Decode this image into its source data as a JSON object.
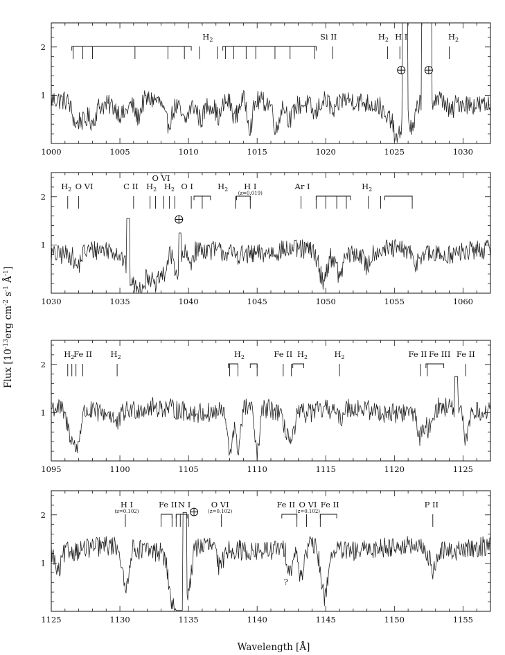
{
  "figure": {
    "xlabel": "Wavelength [Å]",
    "ylabel": "Flux [10^-13 erg cm^-2 s^-1 Å^-1]",
    "ylabel_parts": {
      "base": "Flux [10",
      "exp1": "-13",
      "mid1": "erg cm",
      "exp2": "-2",
      "mid2": " s",
      "exp3": "-1",
      "mid3": " Å",
      "exp4": "-1",
      "end": "]"
    }
  },
  "chart_data": [
    {
      "type": "line",
      "xlim": [
        1000,
        1032
      ],
      "ylim": [
        0,
        2.5
      ],
      "xticks": [
        1000,
        1005,
        1010,
        1015,
        1020,
        1025,
        1030
      ],
      "yticks": [
        1,
        2
      ],
      "continuum": 0.85,
      "absorption": [
        {
          "w": 1001.8,
          "depth": 0.45,
          "width": 0.35
        },
        {
          "w": 1002.4,
          "depth": 0.35,
          "width": 0.3
        },
        {
          "w": 1003.0,
          "depth": 0.35,
          "width": 0.3
        },
        {
          "w": 1005.2,
          "depth": 0.25,
          "width": 0.5
        },
        {
          "w": 1006.3,
          "depth": 0.35,
          "width": 0.3
        },
        {
          "w": 1008.5,
          "depth": 0.45,
          "width": 0.4
        },
        {
          "w": 1009.7,
          "depth": 0.35,
          "width": 0.35
        },
        {
          "w": 1010.9,
          "depth": 0.3,
          "width": 0.3
        },
        {
          "w": 1012.2,
          "depth": 0.3,
          "width": 0.3
        },
        {
          "w": 1013.4,
          "depth": 0.35,
          "width": 0.3
        },
        {
          "w": 1014.5,
          "depth": 0.55,
          "width": 0.25
        },
        {
          "w": 1016.4,
          "depth": 0.55,
          "width": 0.25
        },
        {
          "w": 1017.4,
          "depth": 0.3,
          "width": 0.3
        },
        {
          "w": 1019.2,
          "depth": 0.25,
          "width": 0.3
        },
        {
          "w": 1020.6,
          "depth": 0.3,
          "width": 0.3
        },
        {
          "w": 1024.4,
          "depth": 0.3,
          "width": 0.3
        },
        {
          "w": 1025.2,
          "depth": 0.75,
          "width": 0.4
        },
        {
          "w": 1026.3,
          "depth": 0.6,
          "width": 0.3
        },
        {
          "w": 1029.1,
          "depth": 0.25,
          "width": 0.3
        }
      ],
      "emission": [
        {
          "x0": 1025.6,
          "x1": 1025.95,
          "peak": 3.2
        },
        {
          "x0": 1027.0,
          "x1": 1027.7,
          "peak": 3.2
        }
      ],
      "labels": [
        {
          "text": "H",
          "sub": "2",
          "w": 1011.4,
          "row": 1
        },
        {
          "text": "Si II",
          "w": 1020.2,
          "row": 1
        },
        {
          "text": "H",
          "sub": "2",
          "w": 1024.2,
          "row": 1
        },
        {
          "text": "H I",
          "w": 1025.5,
          "row": 1
        },
        {
          "text": "H",
          "sub": "2",
          "w": 1029.3,
          "row": 1
        }
      ],
      "brackets": [
        {
          "x0": 1001.5,
          "x1": 1010.2,
          "row": 1
        },
        {
          "x0": 1012.5,
          "x1": 1019.3,
          "row": 1
        }
      ],
      "markers": [
        1001.6,
        1002.3,
        1003.0,
        1006.1,
        1008.5,
        1009.7,
        1010.8,
        1012.1,
        1012.7,
        1013.3,
        1014.2,
        1014.9,
        1016.3,
        1017.4,
        1019.2,
        1020.5,
        1024.5,
        1025.4,
        1029.0
      ],
      "earth": [
        {
          "w": 1025.5,
          "y": 1.52
        },
        {
          "w": 1027.5,
          "y": 1.52
        }
      ]
    },
    {
      "type": "line",
      "xlim": [
        1030,
        1062
      ],
      "ylim": [
        0,
        2.5
      ],
      "xticks": [
        1030,
        1035,
        1040,
        1045,
        1050,
        1055,
        1060
      ],
      "yticks": [
        1,
        2
      ],
      "continuum": 0.85,
      "absorption": [
        {
          "w": 1031.9,
          "depth": 0.3,
          "width": 0.3
        },
        {
          "w": 1036.3,
          "depth": 0.75,
          "width": 0.9
        },
        {
          "w": 1037.6,
          "depth": 0.6,
          "width": 0.35
        },
        {
          "w": 1038.2,
          "depth": 0.4,
          "width": 0.3
        },
        {
          "w": 1039.2,
          "depth": 0.45,
          "width": 0.3
        },
        {
          "w": 1040.1,
          "depth": 0.25,
          "width": 0.3
        },
        {
          "w": 1049.8,
          "depth": 0.55,
          "width": 0.4
        },
        {
          "w": 1051.0,
          "depth": 0.45,
          "width": 0.3
        },
        {
          "w": 1053.0,
          "depth": 0.3,
          "width": 0.3
        },
        {
          "w": 1056.5,
          "depth": 0.25,
          "width": 0.3
        }
      ],
      "emission": [
        {
          "x0": 1035.5,
          "x1": 1035.7,
          "peak": 1.55
        },
        {
          "x0": 1039.3,
          "x1": 1039.45,
          "peak": 1.25
        }
      ],
      "labels": [
        {
          "text": "H",
          "sub": "2",
          "w": 1031.1,
          "row": 1
        },
        {
          "text": "O VI",
          "w": 1032.4,
          "row": 1
        },
        {
          "text": "C II",
          "w": 1035.8,
          "row": 1
        },
        {
          "text": "O VI",
          "w": 1038.0,
          "row": 0
        },
        {
          "text": "H",
          "sub": "2",
          "w": 1037.3,
          "row": 1
        },
        {
          "text": "H",
          "sub": "2",
          "w": 1038.6,
          "row": 1
        },
        {
          "text": "O I",
          "w": 1039.9,
          "row": 1
        },
        {
          "text": "H",
          "sub": "2",
          "w": 1042.5,
          "row": 1
        },
        {
          "text": "H I",
          "note": "(z=0.019)",
          "w": 1044.5,
          "row": 1
        },
        {
          "text": "Ar I",
          "w": 1048.3,
          "row": 1
        },
        {
          "text": "H",
          "sub": "2",
          "w": 1053.0,
          "row": 1
        }
      ],
      "brackets": [
        {
          "x0": 1040.4,
          "x1": 1041.6,
          "row": 1
        },
        {
          "x0": 1043.5,
          "x1": 1044.5,
          "row": 1
        },
        {
          "x0": 1049.3,
          "x1": 1051.8,
          "row": 1
        },
        {
          "x0": 1054.3,
          "x1": 1056.3,
          "row": 1
        }
      ],
      "markers": [
        1031.2,
        1032.0,
        1036.0,
        1037.2,
        1037.6,
        1038.2,
        1038.6,
        1039.0,
        1040.2,
        1041.0,
        1043.4,
        1044.5,
        1048.2,
        1049.3,
        1050.0,
        1050.8,
        1051.5,
        1053.1,
        1054.0,
        1056.3
      ],
      "earth": [
        {
          "w": 1039.3,
          "y": 1.53
        }
      ]
    },
    {
      "type": "line",
      "xlim": [
        1095,
        1127
      ],
      "ylim": [
        0,
        2.5
      ],
      "xticks": [
        1095,
        1100,
        1105,
        1110,
        1115,
        1120,
        1125
      ],
      "yticks": [
        1,
        2
      ],
      "continuum": 1.05,
      "absorption": [
        {
          "w": 1096.5,
          "depth": 0.55,
          "width": 0.5
        },
        {
          "w": 1096.9,
          "depth": 0.5,
          "width": 0.3
        },
        {
          "w": 1099.8,
          "depth": 0.25,
          "width": 0.3
        },
        {
          "w": 1108.0,
          "depth": 0.9,
          "width": 0.25
        },
        {
          "w": 1108.6,
          "depth": 0.85,
          "width": 0.25
        },
        {
          "w": 1110.0,
          "depth": 0.95,
          "width": 0.25
        },
        {
          "w": 1112.0,
          "depth": 0.3,
          "width": 0.3
        },
        {
          "w": 1112.5,
          "depth": 0.6,
          "width": 0.3
        },
        {
          "w": 1116.0,
          "depth": 0.25,
          "width": 0.3
        },
        {
          "w": 1121.9,
          "depth": 0.55,
          "width": 0.3
        },
        {
          "w": 1122.5,
          "depth": 0.4,
          "width": 0.3
        },
        {
          "w": 1125.2,
          "depth": 0.6,
          "width": 0.25
        }
      ],
      "emission": [
        {
          "x0": 1124.4,
          "x1": 1124.6,
          "peak": 1.75
        }
      ],
      "labels": [
        {
          "text": "H",
          "sub": "2",
          "w": 1096.3,
          "row": 1
        },
        {
          "text": "Fe II",
          "w": 1097.3,
          "row": 1
        },
        {
          "text": "H",
          "sub": "2",
          "w": 1099.7,
          "row": 1
        },
        {
          "text": "H",
          "sub": "2",
          "w": 1108.7,
          "row": 1
        },
        {
          "text": "Fe II",
          "w": 1111.9,
          "row": 1
        },
        {
          "text": "H",
          "sub": "2",
          "w": 1113.3,
          "row": 1
        },
        {
          "text": "H",
          "sub": "2",
          "w": 1116.0,
          "row": 1
        },
        {
          "text": "Fe II",
          "w": 1121.7,
          "row": 1
        },
        {
          "text": "Fe III",
          "w": 1123.3,
          "row": 1
        },
        {
          "text": "Fe II",
          "w": 1125.2,
          "row": 1
        }
      ],
      "brackets": [
        {
          "x0": 1107.9,
          "x1": 1108.6,
          "row": 1
        },
        {
          "x0": 1109.5,
          "x1": 1110.0,
          "row": 1
        },
        {
          "x0": 1112.6,
          "x1": 1113.4,
          "row": 1
        },
        {
          "x0": 1122.3,
          "x1": 1123.6,
          "row": 1
        }
      ],
      "markers": [
        1096.2,
        1096.5,
        1096.8,
        1097.3,
        1099.8,
        1108.0,
        1108.6,
        1110.0,
        1111.9,
        1112.5,
        1116.0,
        1121.9,
        1122.4,
        1125.2
      ],
      "earth": []
    },
    {
      "type": "line",
      "xlim": [
        1125,
        1157
      ],
      "ylim": [
        0,
        2.5
      ],
      "xticks": [
        1125,
        1130,
        1135,
        1140,
        1145,
        1150,
        1155
      ],
      "yticks": [
        1,
        2
      ],
      "continuum": 1.3,
      "absorption": [
        {
          "w": 1125.5,
          "depth": 0.45,
          "width": 0.3
        },
        {
          "w": 1130.4,
          "depth": 0.9,
          "width": 0.3
        },
        {
          "w": 1133.7,
          "depth": 0.35,
          "width": 0.3
        },
        {
          "w": 1134.1,
          "depth": 1.05,
          "width": 0.55
        },
        {
          "w": 1134.4,
          "depth": 0.95,
          "width": 0.3
        },
        {
          "w": 1135.0,
          "depth": 0.8,
          "width": 0.3
        },
        {
          "w": 1137.3,
          "depth": 0.45,
          "width": 0.3
        },
        {
          "w": 1142.4,
          "depth": 0.45,
          "width": 0.3
        },
        {
          "w": 1143.2,
          "depth": 0.6,
          "width": 0.3
        },
        {
          "w": 1144.9,
          "depth": 1.0,
          "width": 0.35
        },
        {
          "w": 1152.8,
          "depth": 0.4,
          "width": 0.3
        }
      ],
      "emission": [
        {
          "x0": 1134.6,
          "x1": 1134.85,
          "peak": 2.05
        }
      ],
      "labels": [
        {
          "text": "H I",
          "note": "(z=0.102)",
          "w": 1130.5,
          "row": 1
        },
        {
          "text": "Fe II",
          "w": 1133.5,
          "row": 1
        },
        {
          "text": "N I",
          "w": 1134.7,
          "row": 1
        },
        {
          "text": "O VI",
          "note": "(z=0.102)",
          "w": 1137.3,
          "row": 1
        },
        {
          "text": "Fe II",
          "w": 1142.1,
          "row": 1
        },
        {
          "text": "O VI",
          "note": "(z=0.102)",
          "w": 1143.7,
          "row": 1
        },
        {
          "text": "Fe II",
          "w": 1145.3,
          "row": 1
        },
        {
          "text": "P II",
          "w": 1152.7,
          "row": 1
        }
      ],
      "brackets": [
        {
          "x0": 1133.0,
          "x1": 1133.8,
          "row": 1
        },
        {
          "x0": 1134.1,
          "x1": 1134.9,
          "row": 1
        },
        {
          "x0": 1141.8,
          "x1": 1142.9,
          "row": 1
        },
        {
          "x0": 1144.6,
          "x1": 1145.8,
          "row": 1
        }
      ],
      "markers": [
        1130.4,
        1133.0,
        1133.8,
        1134.1,
        1134.4,
        1135.0,
        1137.4,
        1142.9,
        1143.6,
        1144.6,
        1152.8
      ],
      "earth": [
        {
          "w": 1135.4,
          "y": 2.06
        }
      ],
      "annotations": [
        {
          "text": "?",
          "w": 1142.1,
          "y": 0.55
        }
      ]
    }
  ]
}
